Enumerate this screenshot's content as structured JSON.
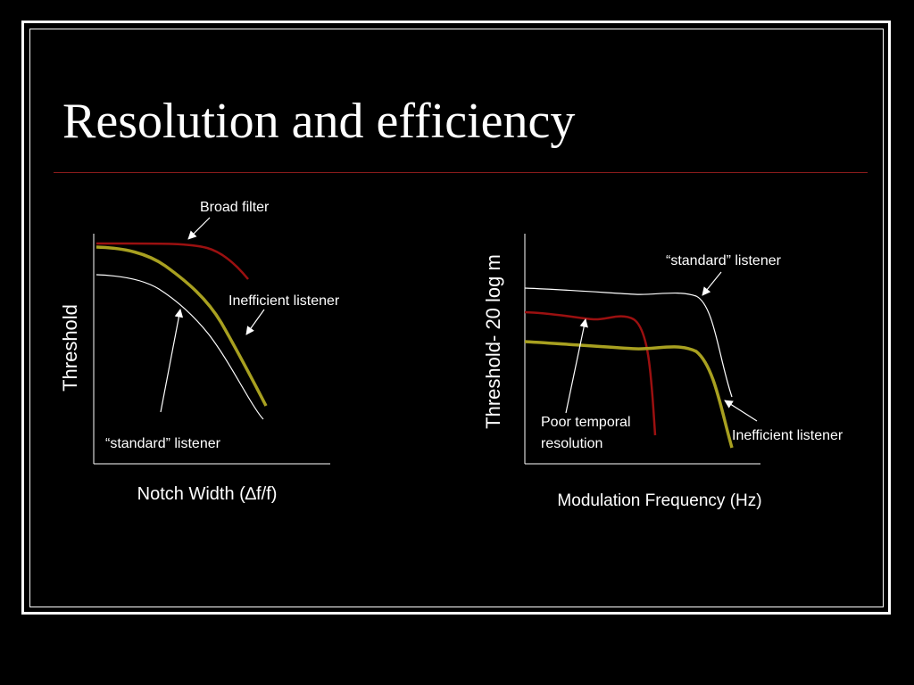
{
  "slide": {
    "title": "Resolution and efficiency"
  },
  "left_panel": {
    "y_axis_label": "Threshold",
    "x_axis_label": "Notch Width (∆f/f)",
    "annotations": {
      "broad_filter": "Broad filter",
      "inefficient_listener": "Inefficient listener",
      "standard_listener": "“standard” listener"
    }
  },
  "right_panel": {
    "y_axis_label": "Threshold- 20 log m",
    "x_axis_label": "Modulation Frequency (Hz)",
    "annotations": {
      "standard_listener": "“standard” listener",
      "poor_temporal_line1": "Poor temporal",
      "poor_temporal_line2": "resolution",
      "inefficient_listener": "Inefficient listener"
    }
  },
  "colors": {
    "background": "#000000",
    "standard_curve": "#ffffff",
    "broad_filter_curve": "#9b1010",
    "inefficient_curve": "#a8a020",
    "title_rule": "#8a1c1c"
  }
}
